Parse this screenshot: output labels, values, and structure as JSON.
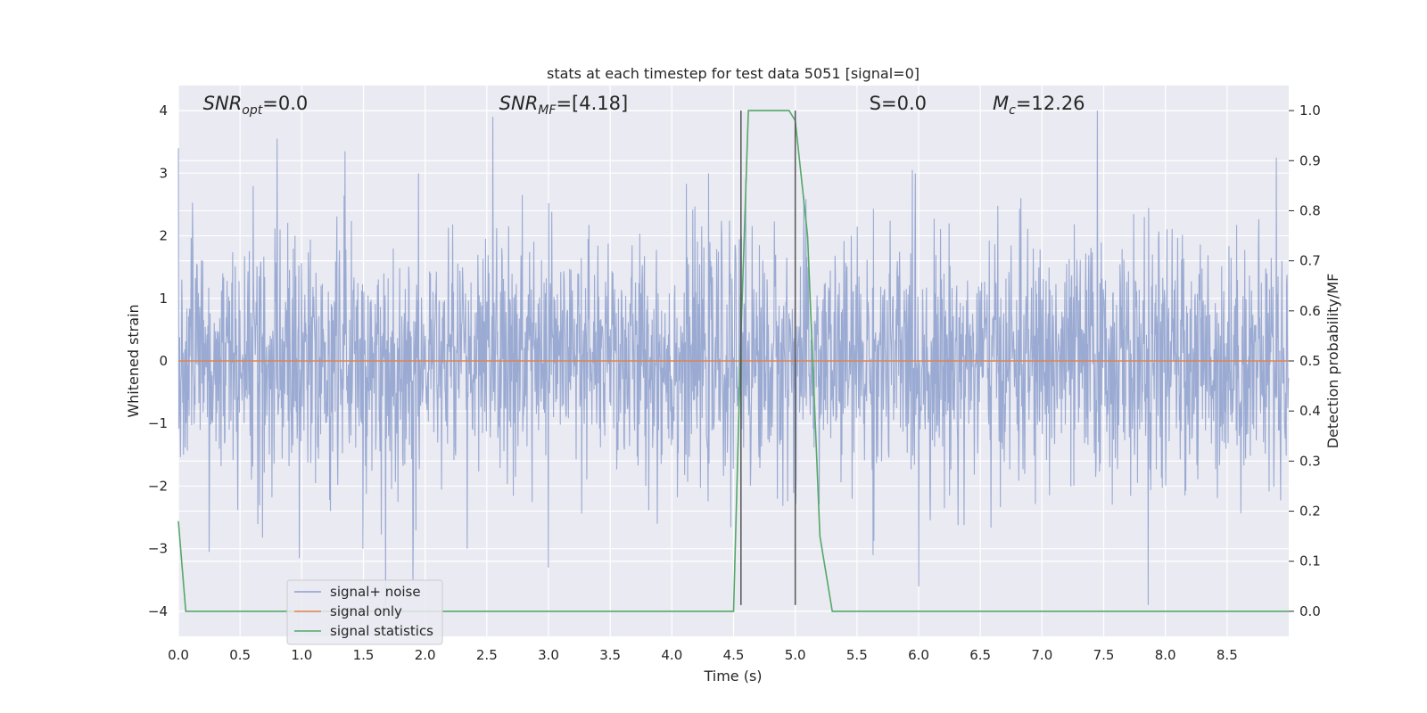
{
  "chart_data": {
    "type": "line",
    "title": "stats at each timestep for test data 5051 [signal=0]",
    "xlabel": "Time (s)",
    "ylabel_left": "Whitened strain",
    "ylabel_right": "Detection probability/MF",
    "xlim": [
      0,
      9.0
    ],
    "ylim_left": [
      -4.4,
      4.4
    ],
    "ylim_right": [
      -0.05,
      1.05
    ],
    "xticks": [
      0.0,
      0.5,
      1.0,
      1.5,
      2.0,
      2.5,
      3.0,
      3.5,
      4.0,
      4.5,
      5.0,
      5.5,
      6.0,
      6.5,
      7.0,
      7.5,
      8.0,
      8.5
    ],
    "xtick_labels": [
      "0.0",
      "0.5",
      "1.0",
      "1.5",
      "2.0",
      "2.5",
      "3.0",
      "3.5",
      "4.0",
      "4.5",
      "5.0",
      "5.5",
      "6.0",
      "6.5",
      "7.0",
      "7.5",
      "8.0",
      "8.5"
    ],
    "yticks_left": [
      -4,
      -3,
      -2,
      -1,
      0,
      1,
      2,
      3,
      4
    ],
    "ytick_labels_left": [
      "−4",
      "−3",
      "−2",
      "−1",
      "0",
      "1",
      "2",
      "3",
      "4"
    ],
    "yticks_right": [
      0.0,
      0.1,
      0.2,
      0.3,
      0.4,
      0.5,
      0.6,
      0.7,
      0.8,
      0.9,
      1.0
    ],
    "ytick_labels_right": [
      "0.0",
      "0.1",
      "0.2",
      "0.3",
      "0.4",
      "0.5",
      "0.6",
      "0.7",
      "0.8",
      "0.9",
      "1.0"
    ],
    "grid": true,
    "legend_position": "lower-left",
    "annotations": [
      {
        "text": "SNR_opt=0.0",
        "x": 0.2,
        "y": 4.0
      },
      {
        "text": "SNR_MF=[4.18]",
        "x": 2.6,
        "y": 4.0
      },
      {
        "text": "S=0.0",
        "x": 5.6,
        "y": 4.0
      },
      {
        "text": "M_c=12.26",
        "x": 6.6,
        "y": 4.0
      }
    ],
    "vertical_markers": [
      {
        "x": 4.56,
        "y_range": [
          -3.9,
          4.0
        ]
      },
      {
        "x": 5.0,
        "y_range": [
          -3.9,
          4.0
        ]
      }
    ],
    "series": [
      {
        "name": "signal+ noise",
        "axis": "left",
        "color": "#8c9fcc",
        "description_of_envelope": "dense whitened noise, mostly within ±1.6, peaks to about ±4",
        "peaks": [
          [
            0.0,
            3.4
          ],
          [
            0.8,
            3.55
          ],
          [
            1.35,
            3.35
          ],
          [
            2.55,
            3.9
          ],
          [
            4.6,
            2.9
          ],
          [
            5.95,
            3.05
          ],
          [
            7.45,
            4.0
          ],
          [
            8.9,
            3.25
          ]
        ],
        "troughs": [
          [
            0.25,
            -3.05
          ],
          [
            0.98,
            -3.15
          ],
          [
            1.68,
            -3.9
          ],
          [
            1.9,
            -3.5
          ],
          [
            3.0,
            -3.3
          ],
          [
            5.63,
            -3.1
          ],
          [
            6.0,
            -3.6
          ],
          [
            7.86,
            -3.9
          ]
        ]
      },
      {
        "name": "signal only",
        "axis": "left",
        "color": "#dd8452",
        "x": [
          0.0,
          9.0
        ],
        "y": [
          0.0,
          0.0
        ]
      },
      {
        "name": "signal statistics",
        "axis": "right",
        "color": "#55a868",
        "x": [
          0.0,
          0.06,
          0.15,
          4.5,
          4.56,
          4.62,
          4.9,
          4.95,
          5.0,
          5.1,
          5.2,
          5.3,
          9.0
        ],
        "y": [
          0.18,
          0.0,
          0.0,
          0.0,
          0.55,
          1.0,
          1.0,
          1.0,
          0.98,
          0.75,
          0.15,
          0.0,
          0.0
        ]
      }
    ]
  },
  "legend": {
    "items": [
      "signal+ noise",
      "signal only",
      "signal statistics"
    ]
  }
}
